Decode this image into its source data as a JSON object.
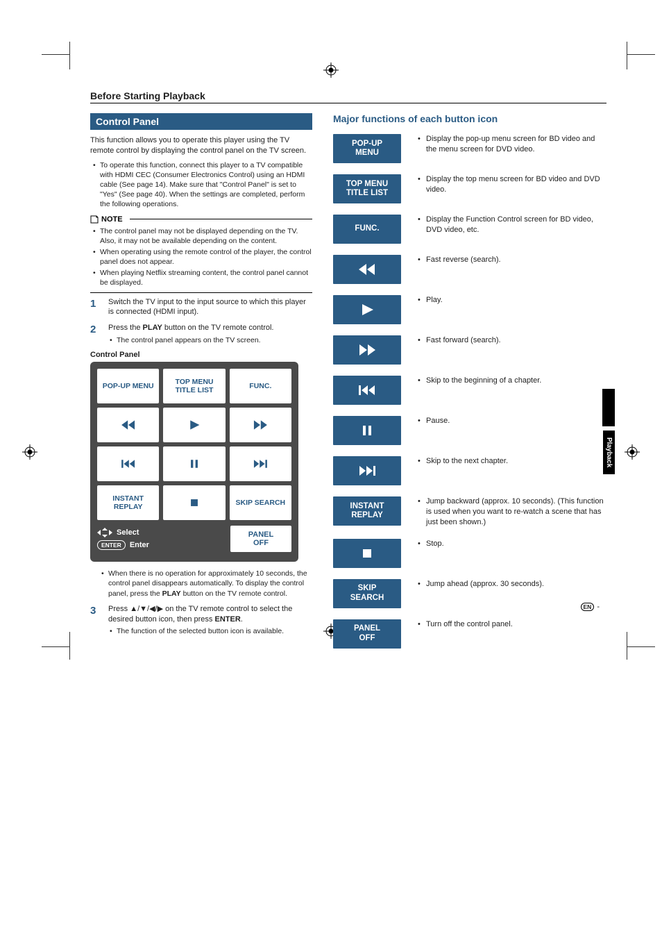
{
  "colors": {
    "accent": "#2a5b84",
    "panel_bg": "#4a4a4a",
    "white": "#ffffff",
    "text": "#222222"
  },
  "header": {
    "section_title": "Before Starting Playback"
  },
  "left": {
    "bar_heading": "Control Panel",
    "intro": "This function allows you to operate this player using the TV remote control by displaying the control panel on the TV screen.",
    "intro_bullets": [
      "To operate this function, connect this player to a TV compatible with HDMI CEC (Consumer Electronics Control) using an HDMI cable (See page 14). Make sure that \"Control Panel\" is set to \"Yes\" (See page 40). When the settings are completed, perform the following operations."
    ],
    "note_label": "NOTE",
    "note_bullets": [
      "The control panel may not be displayed depending on the TV. Also, it may not be available depending on the content.",
      "When operating using the remote control of the player, the control panel does not appear.",
      "When playing Netflix streaming content, the control panel cannot be displayed."
    ],
    "steps": [
      {
        "num": "1",
        "text": "Switch the TV input to the input source to which this player is connected (HDMI input)."
      },
      {
        "num": "2",
        "text_prefix": "Press the ",
        "text_bold": "PLAY",
        "text_suffix": " button on the TV remote control.",
        "sub": "The control panel appears on the TV screen."
      },
      {
        "num": "3",
        "text_prefix": "Press ",
        "arrows": "▲/▼/◀/▶",
        "text_mid": " on the TV remote control to select the desired button icon, then press ",
        "text_bold": "ENTER",
        "text_suffix": ".",
        "sub": "The function of the selected button icon is available."
      }
    ],
    "panel_caption": "Control Panel",
    "panel": {
      "row1": [
        "POP-UP MENU",
        "TOP MENU TITLE LIST",
        "FUNC."
      ],
      "row3": [
        "INSTANT REPLAY",
        "",
        "SKIP SEARCH"
      ],
      "select_label": "Select",
      "enter_label": "Enter",
      "enter_pill": "ENTER",
      "panel_off": "PANEL OFF"
    },
    "post_panel_note": "When there is no operation for approximately 10 seconds, the control panel disappears automatically. To display the control panel, press the PLAY button on the TV remote control.",
    "post_panel_note_bold": "PLAY"
  },
  "right": {
    "heading": "Major functions of each button icon",
    "rows": [
      {
        "type": "label",
        "label": "POP-UP\nMENU",
        "desc": "Display the pop-up menu screen for BD video and the menu screen for DVD video."
      },
      {
        "type": "label",
        "label": "TOP MENU\nTITLE LIST",
        "desc": "Display the top menu screen for BD video and DVD video."
      },
      {
        "type": "label",
        "label": "FUNC.",
        "desc": "Display the Function Control screen for BD video, DVD video, etc."
      },
      {
        "type": "icon",
        "icon": "rew",
        "desc": "Fast reverse (search)."
      },
      {
        "type": "icon",
        "icon": "play",
        "desc": "Play."
      },
      {
        "type": "icon",
        "icon": "ffwd",
        "desc": "Fast forward (search)."
      },
      {
        "type": "icon",
        "icon": "skipback",
        "desc": "Skip to the beginning of a chapter."
      },
      {
        "type": "icon",
        "icon": "pause",
        "desc": "Pause."
      },
      {
        "type": "icon",
        "icon": "skipfwd",
        "desc": "Skip to the next chapter."
      },
      {
        "type": "label",
        "label": "INSTANT\nREPLAY",
        "desc": "Jump backward (approx. 10 seconds). (This function is used when you want to re-watch a scene that has just been shown.)"
      },
      {
        "type": "icon",
        "icon": "stop",
        "desc": "Stop."
      },
      {
        "type": "label",
        "label": "SKIP\nSEARCH",
        "desc": "Jump ahead (approx. 30 seconds)."
      },
      {
        "type": "label",
        "label": "PANEL\nOFF",
        "desc": "Turn off the control panel."
      }
    ]
  },
  "side_tab": "Playback",
  "page_lang": "EN",
  "page_sep": "-"
}
